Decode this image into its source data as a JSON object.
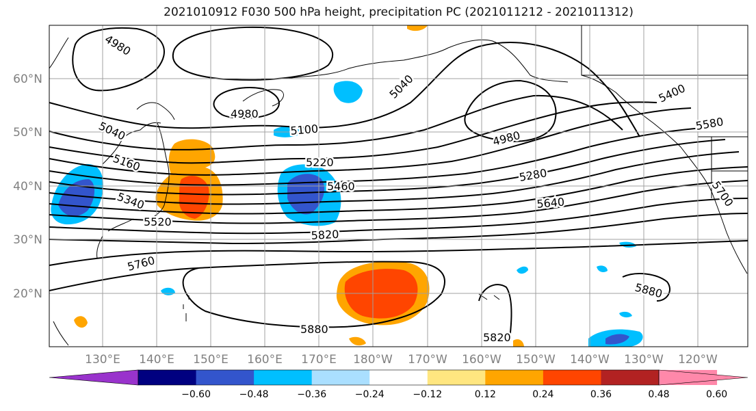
{
  "title": "2021010912 F030 500 hPa height, precipitation PC (2021011212 - 2021011312)",
  "lat_labels": [
    "60°N",
    "50°N",
    "40°N",
    "30°N",
    "20°N"
  ],
  "lon_labels": [
    "130°E",
    "140°E",
    "150°E",
    "160°E",
    "170°E",
    "180°W",
    "170°W",
    "160°W",
    "150°W",
    "140°W",
    "130°W",
    "120°W"
  ],
  "contour_labels": [
    "4980",
    "4980",
    "5040",
    "5040",
    "4980",
    "5100",
    "5160",
    "5220",
    "5280",
    "5340",
    "5400",
    "5460",
    "5520",
    "5580",
    "5640",
    "5700",
    "5760",
    "5820",
    "5820",
    "5880",
    "5880"
  ],
  "colorbar": {
    "ticks": [
      "−0.60",
      "−0.48",
      "−0.36",
      "−0.24",
      "−0.12",
      "0.12",
      "0.24",
      "0.36",
      "0.48",
      "0.60"
    ],
    "colors": [
      "#9933cc",
      "#000080",
      "#3355cc",
      "#00bfff",
      "#aadfff",
      "#ffffff",
      "#ffe680",
      "#ffa500",
      "#ff4500",
      "#b22222",
      "#ff88aa",
      "#ff88aa"
    ]
  },
  "colors": {
    "grid": "#a0a0a0",
    "axis_text": "#808080",
    "contour": "#000000",
    "land": "#000000"
  }
}
